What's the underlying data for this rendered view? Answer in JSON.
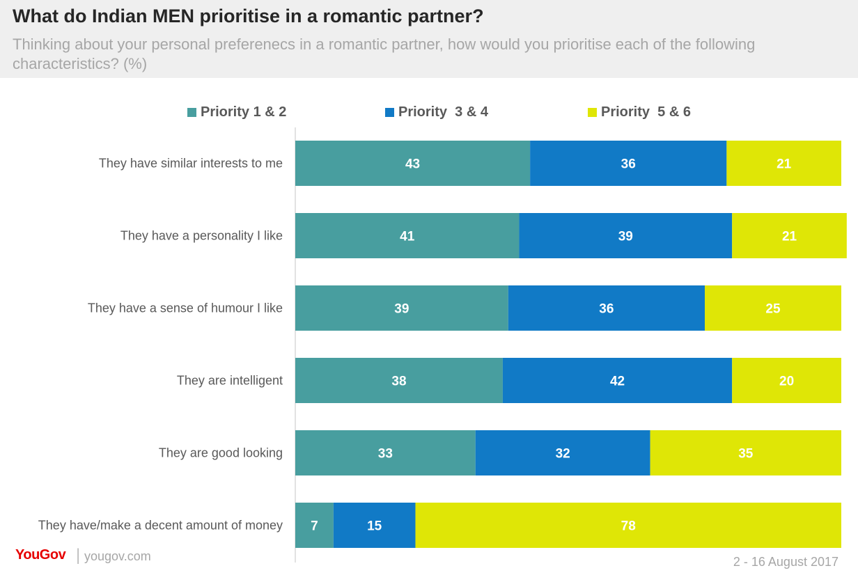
{
  "header": {
    "title": "What do Indian MEN prioritise in a romantic partner?",
    "subtitle": "Thinking about your personal preferenecs in a romantic partner, how would you prioritise each of the following characteristics? (%)"
  },
  "footer": {
    "logo_text": "YouGov",
    "separator": "|",
    "url": "yougov.com",
    "date": "2 - 16 August 2017"
  },
  "chart_data": {
    "type": "bar",
    "orientation": "horizontal",
    "stacked": true,
    "xlim": [
      0,
      100
    ],
    "grid": false,
    "legend_position": "top",
    "categories": [
      "They have similar interests to me",
      "They have a personality I like",
      "They have a sense of humour I like",
      "They are intelligent",
      "They are good looking",
      "They have/make a decent amount of money"
    ],
    "series": [
      {
        "name": "Priority 1 & 2",
        "color": "#489e9f",
        "values": [
          43,
          41,
          39,
          38,
          33,
          7
        ]
      },
      {
        "name": "Priority  3 & 4",
        "color": "#117ac6",
        "values": [
          36,
          39,
          36,
          42,
          32,
          15
        ]
      },
      {
        "name": "Priority  5 & 6",
        "color": "#dfe606",
        "values": [
          21,
          21,
          25,
          20,
          35,
          78
        ]
      }
    ]
  }
}
